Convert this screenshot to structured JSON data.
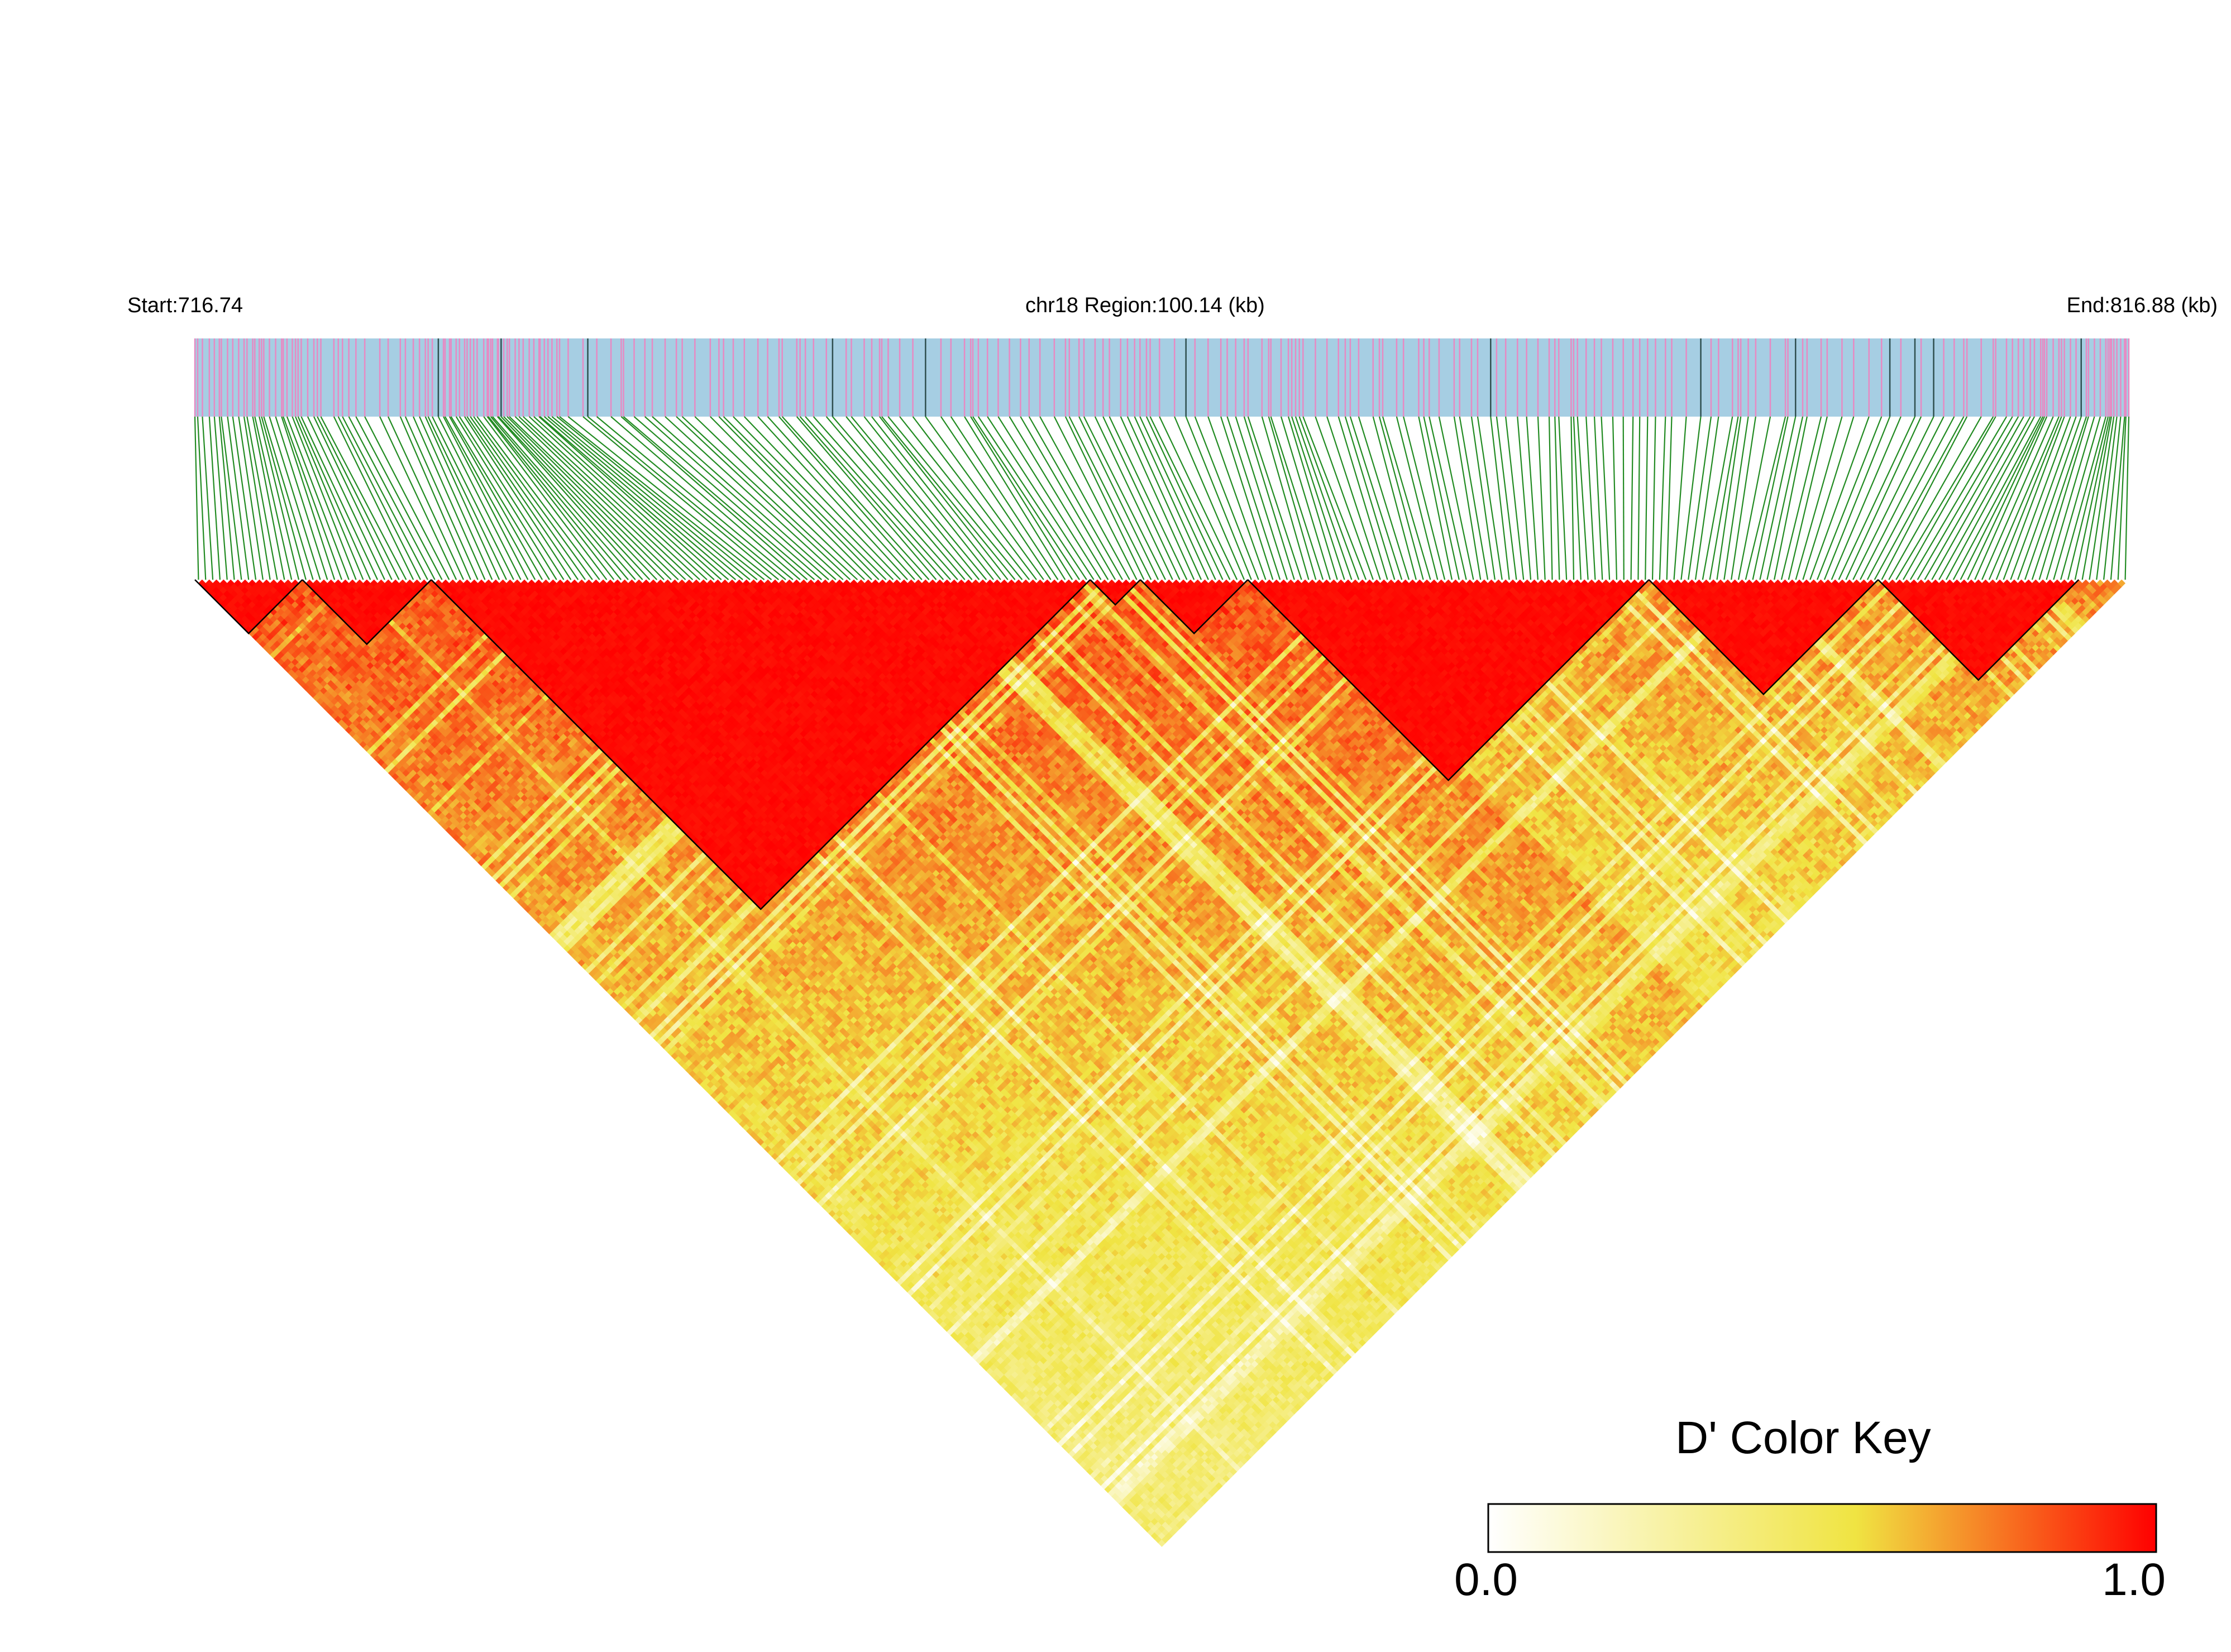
{
  "header": {
    "start_label": "Start:716.74",
    "region_label": "chr18 Region:100.14 (kb)",
    "end_label": "End:816.88 (kb)"
  },
  "chart_data": {
    "type": "heatmap",
    "subtype": "LD triangle heatmap",
    "chromosome": "chr18",
    "region_start_kb": 716.74,
    "region_end_kb": 816.88,
    "region_length_kb": 100.14,
    "n_markers_approx": 270,
    "value_range": [
      0.0,
      1.0
    ],
    "color_scale": [
      "#ffffff",
      "#f0e442",
      "#ff0000"
    ],
    "haplotype_blocks_marker_index": [
      [
        0,
        14
      ],
      [
        15,
        32
      ],
      [
        33,
        124
      ],
      [
        125,
        131
      ],
      [
        132,
        146
      ],
      [
        147,
        202
      ],
      [
        203,
        234
      ],
      [
        235,
        262
      ]
    ],
    "legend": {
      "title": "D' Color Key",
      "min_label": "0.0",
      "max_label": "1.0",
      "placement": "bottom-right"
    }
  },
  "colors": {
    "gene_track_bg": "#a6cee3",
    "marker_tick": "#e78ac3",
    "connector_line": "#228b22",
    "block_outline": "#000000"
  }
}
